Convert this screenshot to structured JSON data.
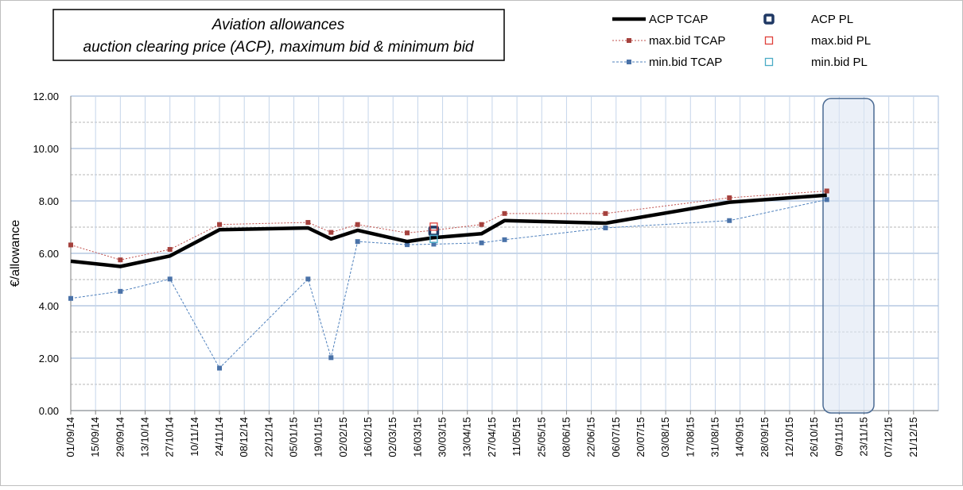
{
  "chart_data": {
    "type": "line",
    "title": "Aviation allowances",
    "subtitle": "auction clearing price (ACP), maximum bid & minimum bid",
    "y_label": "€/allowance",
    "x": [
      "2014-09-01",
      "2014-09-29",
      "2014-10-27",
      "2014-11-24",
      "2015-01-13",
      "2015-01-26",
      "2015-02-10",
      "2015-03-10",
      "2015-03-25",
      "2015-04-21",
      "2015-05-04",
      "2015-06-30",
      "2015-09-08",
      "2015-11-02"
    ],
    "series": [
      {
        "name": "ACP TCAP",
        "color": "#000000",
        "style": "line",
        "values": [
          5.7,
          5.5,
          5.9,
          6.9,
          6.97,
          6.55,
          6.88,
          6.45,
          6.6,
          6.75,
          7.25,
          7.15,
          7.95,
          8.22
        ]
      },
      {
        "name": "max.bid TCAP",
        "color": "#c0504d",
        "style": "dotted-marker",
        "values": [
          6.32,
          5.75,
          6.15,
          7.1,
          7.18,
          6.8,
          7.1,
          6.78,
          6.88,
          7.1,
          7.52,
          7.52,
          8.12,
          8.38
        ]
      },
      {
        "name": "min.bid TCAP",
        "color": "#4f81bd",
        "style": "dashed-marker",
        "values": [
          4.28,
          4.55,
          5.02,
          1.62,
          5.02,
          2.02,
          6.45,
          6.33,
          6.35,
          6.4,
          6.52,
          6.97,
          7.25,
          8.05
        ]
      },
      {
        "name": "ACP PL",
        "color": "#1f3864",
        "style": "bold-square",
        "x": [
          "2015-03-25"
        ],
        "values": [
          6.85
        ]
      },
      {
        "name": "max.bid PL",
        "color": "#e0403a",
        "style": "hollow-square",
        "x": [
          "2015-03-25"
        ],
        "values": [
          7.02
        ]
      },
      {
        "name": "min.bid PL",
        "color": "#4bacc6",
        "style": "hollow-square",
        "x": [
          "2015-03-25"
        ],
        "values": [
          6.55
        ]
      }
    ],
    "xlim": [
      "2014-09-01",
      "2016-01-04"
    ],
    "xticks": [
      {
        "value": "2014-09-01",
        "label": "01/09/14"
      },
      {
        "value": "2014-09-15",
        "label": "15/09/14"
      },
      {
        "value": "2014-09-29",
        "label": "29/09/14"
      },
      {
        "value": "2014-10-13",
        "label": "13/10/14"
      },
      {
        "value": "2014-10-27",
        "label": "27/10/14"
      },
      {
        "value": "2014-11-10",
        "label": "10/11/14"
      },
      {
        "value": "2014-11-24",
        "label": "24/11/14"
      },
      {
        "value": "2014-12-08",
        "label": "08/12/14"
      },
      {
        "value": "2014-12-22",
        "label": "22/12/14"
      },
      {
        "value": "2015-01-05",
        "label": "05/01/15"
      },
      {
        "value": "2015-01-19",
        "label": "19/01/15"
      },
      {
        "value": "2015-02-02",
        "label": "02/02/15"
      },
      {
        "value": "2015-02-16",
        "label": "16/02/15"
      },
      {
        "value": "2015-03-02",
        "label": "02/03/15"
      },
      {
        "value": "2015-03-16",
        "label": "16/03/15"
      },
      {
        "value": "2015-03-30",
        "label": "30/03/15"
      },
      {
        "value": "2015-04-13",
        "label": "13/04/15"
      },
      {
        "value": "2015-04-27",
        "label": "27/04/15"
      },
      {
        "value": "2015-05-11",
        "label": "11/05/15"
      },
      {
        "value": "2015-05-25",
        "label": "25/05/15"
      },
      {
        "value": "2015-06-08",
        "label": "08/06/15"
      },
      {
        "value": "2015-06-22",
        "label": "22/06/15"
      },
      {
        "value": "2015-07-06",
        "label": "06/07/15"
      },
      {
        "value": "2015-07-20",
        "label": "20/07/15"
      },
      {
        "value": "2015-08-03",
        "label": "03/08/15"
      },
      {
        "value": "2015-08-17",
        "label": "17/08/15"
      },
      {
        "value": "2015-08-31",
        "label": "31/08/15"
      },
      {
        "value": "2015-09-14",
        "label": "14/09/15"
      },
      {
        "value": "2015-09-28",
        "label": "28/09/15"
      },
      {
        "value": "2015-10-12",
        "label": "12/10/15"
      },
      {
        "value": "2015-10-26",
        "label": "26/10/15"
      },
      {
        "value": "2015-11-09",
        "label": "09/11/15"
      },
      {
        "value": "2015-11-23",
        "label": "23/11/15"
      },
      {
        "value": "2015-12-07",
        "label": "07/12/15"
      },
      {
        "value": "2015-12-21",
        "label": "21/12/15"
      }
    ],
    "ylim": [
      0,
      12
    ],
    "yticks": [
      {
        "value": 0,
        "label": "0.00"
      },
      {
        "value": 2,
        "label": "2.00"
      },
      {
        "value": 4,
        "label": "4.00"
      },
      {
        "value": 6,
        "label": "6.00"
      },
      {
        "value": 8,
        "label": "8.00"
      },
      {
        "value": 10,
        "label": "10.00"
      },
      {
        "value": 12,
        "label": "12.00"
      }
    ],
    "yminorticks": [
      1,
      3,
      5,
      7,
      9,
      11
    ],
    "grid": true,
    "legend": "top-right"
  }
}
